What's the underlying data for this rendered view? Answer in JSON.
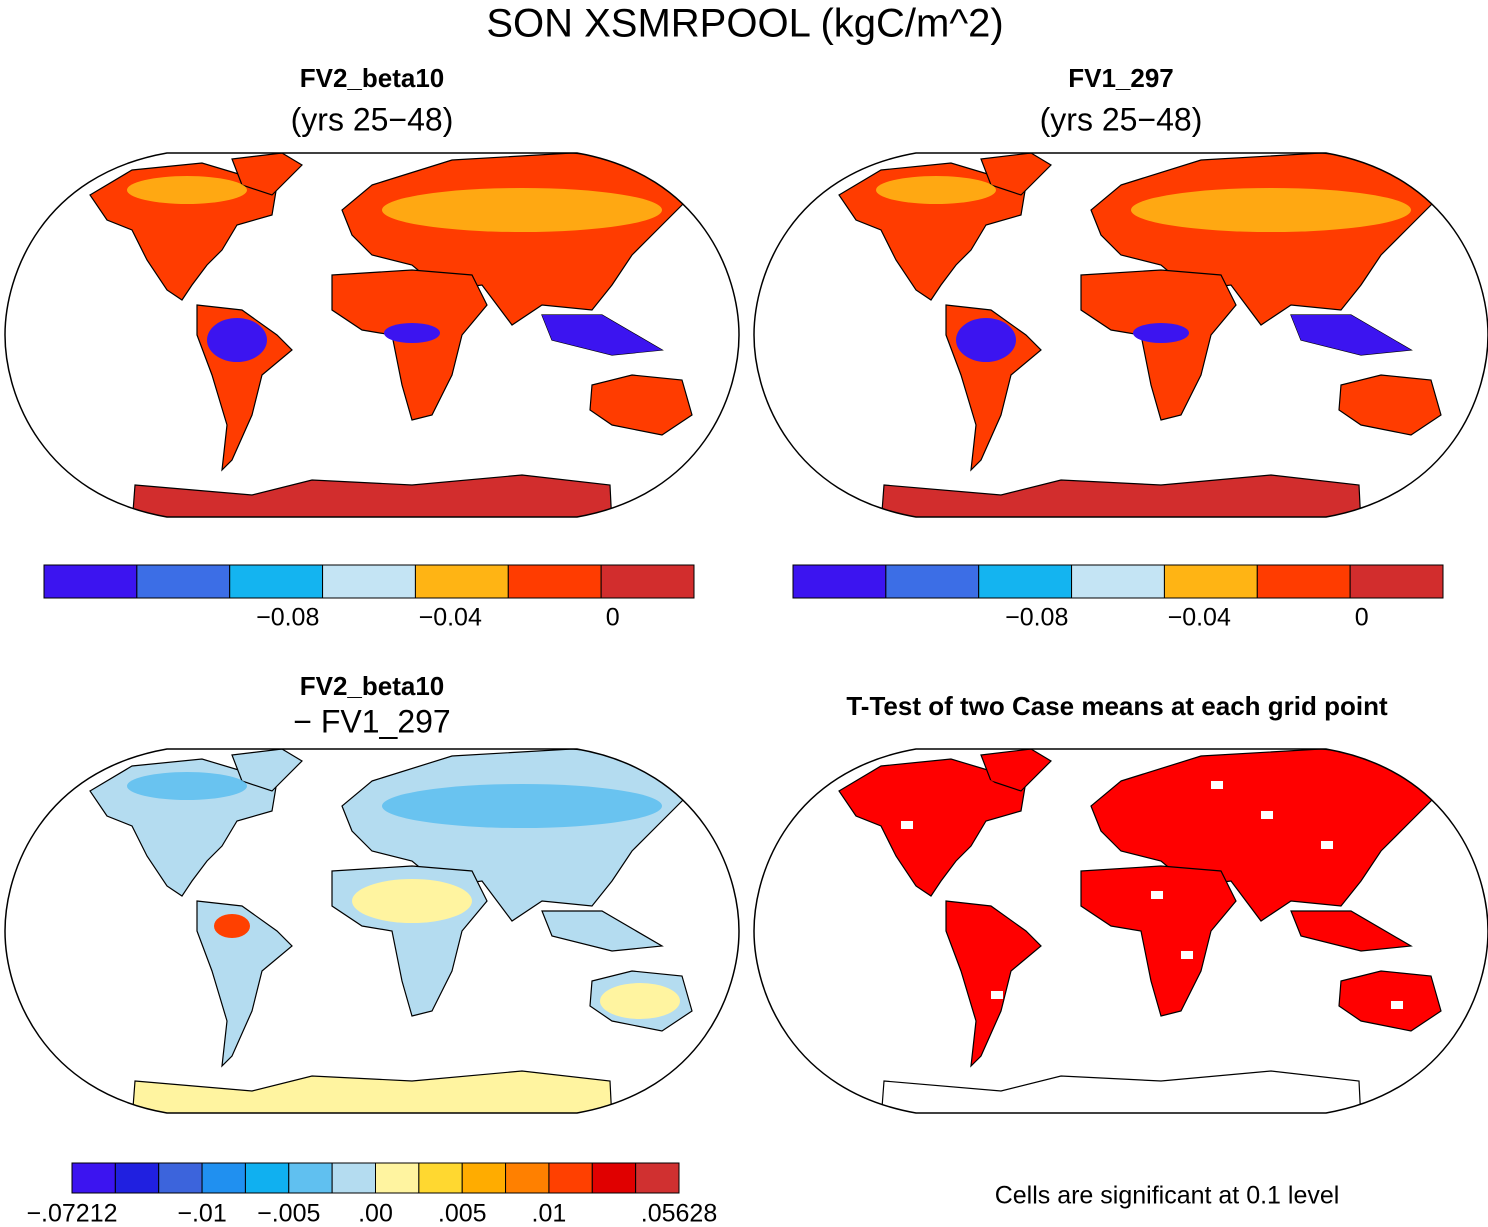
{
  "title": "SON XSMRPOOL (kgC/m^2)",
  "panels": [
    {
      "title": "FV2_beta10",
      "subtitle": "(yrs 25−48)",
      "colorbar": {
        "colors": [
          "#3c14f0",
          "#3c6ee6",
          "#14b4f0",
          "#c4e4f4",
          "#ffb414",
          "#ff3c00",
          "#d22d2d"
        ],
        "lim": [
          -0.14,
          0.02
        ],
        "ticks": [
          {
            "value": -0.08,
            "label": "−0.08"
          },
          {
            "value": -0.04,
            "label": "−0.04"
          },
          0
        ]
      }
    },
    {
      "title": "FV1_297",
      "subtitle": "(yrs 25−48)",
      "colorbar": {
        "colors": [
          "#3c14f0",
          "#3c6ee6",
          "#14b4f0",
          "#c4e4f4",
          "#ffb414",
          "#ff3c00",
          "#d22d2d"
        ],
        "lim": [
          -0.14,
          0.02
        ],
        "ticks": [
          {
            "value": -0.08,
            "label": "−0.08"
          },
          {
            "value": -0.04,
            "label": "−0.04"
          },
          0
        ]
      }
    },
    {
      "title": "FV2_beta10",
      "subtitle": "− FV1_297",
      "colorbar": {
        "colors": [
          "#3c14f0",
          "#2020e0",
          "#3c64dc",
          "#2090f0",
          "#10b0f0",
          "#60c0f0",
          "#b4dcf0",
          "#fff4a0",
          "#ffd830",
          "#ffac00",
          "#ff8000",
          "#ff4000",
          "#e00000",
          "#d03030"
        ],
        "labels": [
          "−.07212",
          null,
          null,
          "−.01",
          null,
          "−.005",
          null,
          ".00",
          null,
          ".005",
          null,
          ".01",
          null,
          null,
          ".05628"
        ]
      }
    },
    {
      "title": "T-Test of two Case means at each grid point",
      "note": "Cells are significant at 0.1 level",
      "color": "#ff0000"
    }
  ]
}
